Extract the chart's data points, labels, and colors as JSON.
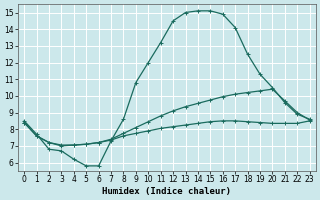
{
  "title": "",
  "xlabel": "Humidex (Indice chaleur)",
  "xlim": [
    -0.5,
    23.5
  ],
  "ylim": [
    5.5,
    15.5
  ],
  "yticks": [
    6,
    7,
    8,
    9,
    10,
    11,
    12,
    13,
    14,
    15
  ],
  "xticks": [
    0,
    1,
    2,
    3,
    4,
    5,
    6,
    7,
    8,
    9,
    10,
    11,
    12,
    13,
    14,
    15,
    16,
    17,
    18,
    19,
    20,
    21,
    22,
    23
  ],
  "bg_color": "#cce8eb",
  "grid_color": "#ffffff",
  "line_color": "#1a6b5e",
  "line1_x": [
    0,
    1,
    2,
    3,
    4,
    5,
    6,
    7,
    8,
    9,
    10,
    11,
    12,
    13,
    14,
    15,
    16,
    17,
    18,
    19,
    20,
    21,
    22,
    23
  ],
  "line1_y": [
    8.5,
    7.7,
    6.8,
    6.7,
    6.2,
    5.8,
    5.8,
    7.3,
    8.6,
    10.8,
    12.0,
    13.2,
    14.5,
    15.0,
    15.1,
    15.1,
    14.9,
    14.1,
    12.5,
    11.3,
    10.5,
    9.6,
    8.9,
    8.6
  ],
  "line2_x": [
    0,
    1,
    2,
    3,
    4,
    5,
    6,
    7,
    8,
    9,
    10,
    11,
    12,
    13,
    14,
    15,
    16,
    17,
    18,
    19,
    20,
    21,
    22,
    23
  ],
  "line2_y": [
    8.4,
    7.6,
    7.2,
    7.0,
    7.05,
    7.1,
    7.2,
    7.4,
    7.75,
    8.1,
    8.45,
    8.8,
    9.1,
    9.35,
    9.55,
    9.75,
    9.95,
    10.1,
    10.2,
    10.3,
    10.4,
    9.7,
    9.0,
    8.55
  ],
  "line3_x": [
    0,
    1,
    2,
    3,
    4,
    5,
    6,
    7,
    8,
    9,
    10,
    11,
    12,
    13,
    14,
    15,
    16,
    17,
    18,
    19,
    20,
    21,
    22,
    23
  ],
  "line3_y": [
    8.4,
    7.6,
    7.2,
    7.05,
    7.05,
    7.1,
    7.2,
    7.35,
    7.6,
    7.75,
    7.9,
    8.05,
    8.15,
    8.25,
    8.35,
    8.45,
    8.5,
    8.5,
    8.45,
    8.4,
    8.35,
    8.35,
    8.35,
    8.5
  ],
  "markersize": 3,
  "linewidth": 0.9,
  "tick_fontsize": 5.5,
  "label_fontsize": 6.5
}
